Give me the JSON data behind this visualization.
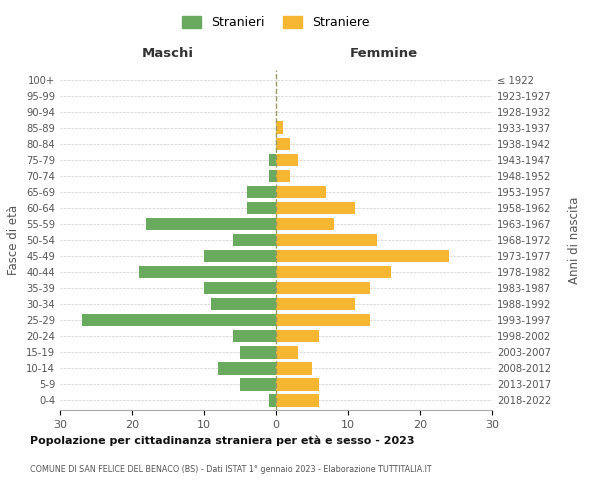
{
  "age_groups": [
    "0-4",
    "5-9",
    "10-14",
    "15-19",
    "20-24",
    "25-29",
    "30-34",
    "35-39",
    "40-44",
    "45-49",
    "50-54",
    "55-59",
    "60-64",
    "65-69",
    "70-74",
    "75-79",
    "80-84",
    "85-89",
    "90-94",
    "95-99",
    "100+"
  ],
  "birth_years": [
    "2018-2022",
    "2013-2017",
    "2008-2012",
    "2003-2007",
    "1998-2002",
    "1993-1997",
    "1988-1992",
    "1983-1987",
    "1978-1982",
    "1973-1977",
    "1968-1972",
    "1963-1967",
    "1958-1962",
    "1953-1957",
    "1948-1952",
    "1943-1947",
    "1938-1942",
    "1933-1937",
    "1928-1932",
    "1923-1927",
    "≤ 1922"
  ],
  "maschi": [
    1,
    5,
    8,
    5,
    6,
    27,
    9,
    10,
    19,
    10,
    6,
    18,
    4,
    4,
    1,
    1,
    0,
    0,
    0,
    0,
    0
  ],
  "femmine": [
    6,
    6,
    5,
    3,
    6,
    13,
    11,
    13,
    16,
    24,
    14,
    8,
    11,
    7,
    2,
    3,
    2,
    1,
    0,
    0,
    0
  ],
  "maschi_color": "#6aaa5e",
  "femmine_color": "#f5b731",
  "title": "Popolazione per cittadinanza straniera per età e sesso - 2023",
  "subtitle": "COMUNE DI SAN FELICE DEL BENACO (BS) - Dati ISTAT 1° gennaio 2023 - Elaborazione TUTTITALIA.IT",
  "xlabel_left": "Maschi",
  "xlabel_right": "Femmine",
  "ylabel_left": "Fasce di età",
  "ylabel_right": "Anni di nascita",
  "xlim": 30,
  "legend_labels": [
    "Stranieri",
    "Straniere"
  ],
  "bg_color": "#ffffff",
  "grid_color": "#cccccc"
}
